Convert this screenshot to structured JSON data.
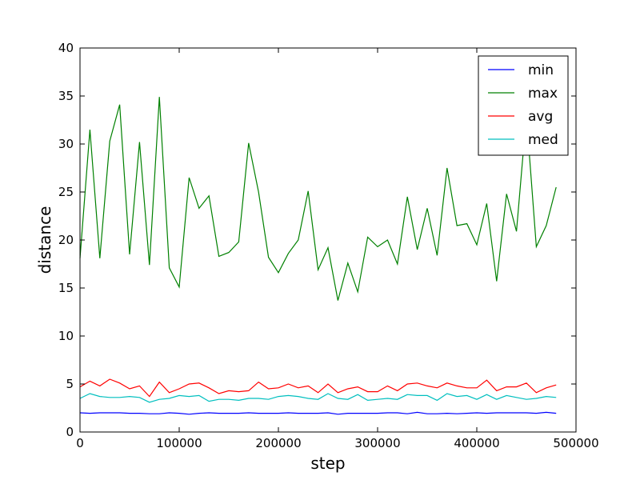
{
  "chart_data": {
    "type": "line",
    "xlabel": "step",
    "ylabel": "distance",
    "xlim": [
      0,
      500000
    ],
    "ylim": [
      0,
      40
    ],
    "x_ticks": [
      0,
      100000,
      200000,
      300000,
      400000,
      500000
    ],
    "x_tick_labels": [
      "0",
      "100000",
      "200000",
      "300000",
      "400000",
      "500000"
    ],
    "y_ticks": [
      0,
      5,
      10,
      15,
      20,
      25,
      30,
      35,
      40
    ],
    "y_tick_labels": [
      "0",
      "5",
      "10",
      "15",
      "20",
      "25",
      "30",
      "35",
      "40"
    ],
    "grid": false,
    "legend_position": "top-right",
    "x": [
      0,
      10000,
      20000,
      30000,
      40000,
      50000,
      60000,
      70000,
      80000,
      90000,
      100000,
      110000,
      120000,
      130000,
      140000,
      150000,
      160000,
      170000,
      180000,
      190000,
      200000,
      210000,
      220000,
      230000,
      240000,
      250000,
      260000,
      270000,
      280000,
      290000,
      300000,
      310000,
      320000,
      330000,
      340000,
      350000,
      360000,
      370000,
      380000,
      390000,
      400000,
      410000,
      420000,
      430000,
      440000,
      450000,
      460000,
      470000,
      480000
    ],
    "series": [
      {
        "name": "min",
        "color": "#0000ff",
        "values": [
          2.0,
          1.95,
          2.0,
          2.0,
          2.0,
          1.95,
          1.95,
          1.9,
          1.9,
          2.0,
          1.95,
          1.85,
          1.95,
          2.0,
          1.95,
          1.95,
          1.95,
          2.0,
          1.95,
          1.95,
          1.95,
          2.0,
          1.95,
          1.95,
          1.95,
          2.0,
          1.85,
          1.95,
          1.95,
          1.95,
          1.95,
          2.0,
          2.0,
          1.9,
          2.05,
          1.9,
          1.9,
          1.95,
          1.9,
          1.95,
          2.0,
          1.95,
          2.0,
          2.0,
          2.0,
          2.0,
          1.95,
          2.05,
          1.95
        ]
      },
      {
        "name": "max",
        "color": "#008000",
        "values": [
          18.1,
          31.5,
          18.1,
          30.3,
          34.1,
          18.5,
          30.2,
          17.4,
          34.9,
          17.1,
          15.1,
          26.5,
          23.3,
          24.6,
          18.3,
          18.7,
          19.8,
          30.1,
          25.0,
          18.2,
          16.6,
          18.6,
          20.0,
          25.1,
          16.9,
          19.2,
          13.7,
          17.6,
          14.6,
          20.3,
          19.3,
          20.0,
          17.5,
          24.5,
          19.0,
          23.3,
          18.4,
          27.5,
          21.5,
          21.7,
          19.5,
          23.8,
          15.7,
          24.8,
          20.9,
          33.0,
          19.3,
          21.5,
          25.5
        ]
      },
      {
        "name": "avg",
        "color": "#ff0000",
        "values": [
          4.7,
          5.3,
          4.8,
          5.5,
          5.1,
          4.5,
          4.8,
          3.7,
          5.2,
          4.1,
          4.5,
          5.0,
          5.1,
          4.6,
          4.0,
          4.3,
          4.2,
          4.3,
          5.2,
          4.5,
          4.6,
          5.0,
          4.6,
          4.8,
          4.1,
          5.0,
          4.1,
          4.5,
          4.7,
          4.2,
          4.2,
          4.8,
          4.3,
          5.0,
          5.1,
          4.8,
          4.6,
          5.1,
          4.8,
          4.6,
          4.6,
          5.4,
          4.3,
          4.7,
          4.7,
          5.1,
          4.1,
          4.6,
          4.9
        ]
      },
      {
        "name": "med",
        "color": "#00bfbf",
        "values": [
          3.5,
          4.0,
          3.7,
          3.6,
          3.6,
          3.7,
          3.6,
          3.1,
          3.4,
          3.5,
          3.8,
          3.7,
          3.8,
          3.2,
          3.4,
          3.4,
          3.3,
          3.5,
          3.5,
          3.4,
          3.7,
          3.8,
          3.7,
          3.5,
          3.4,
          4.0,
          3.5,
          3.4,
          3.9,
          3.3,
          3.4,
          3.5,
          3.4,
          3.9,
          3.8,
          3.8,
          3.3,
          4.0,
          3.7,
          3.8,
          3.4,
          3.9,
          3.4,
          3.8,
          3.6,
          3.4,
          3.5,
          3.7,
          3.6
        ]
      }
    ]
  }
}
